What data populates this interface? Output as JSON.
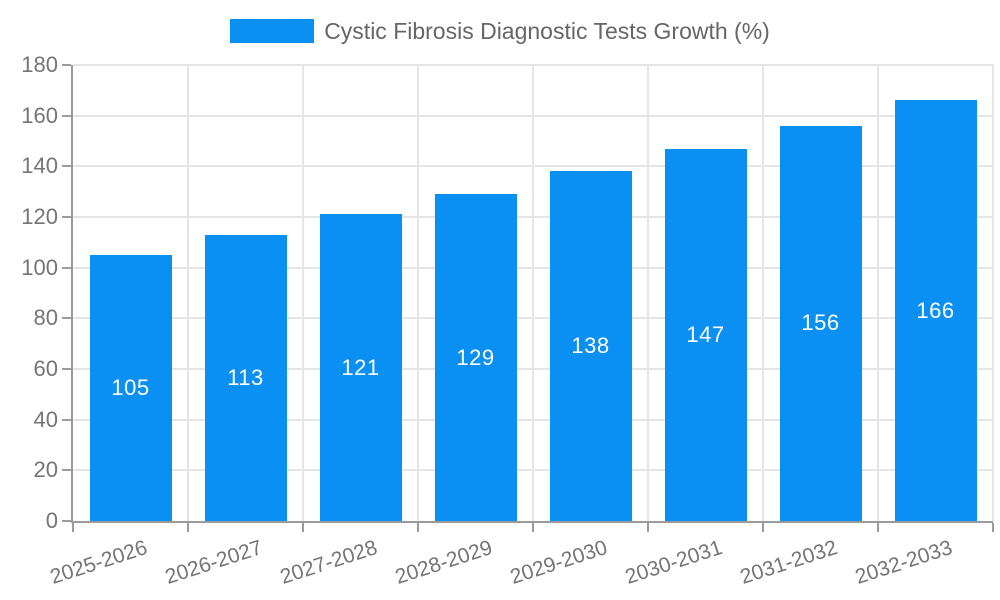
{
  "chart_data": {
    "type": "bar",
    "title": "Cystic Fibrosis Diagnostic Tests Growth (%)",
    "categories": [
      "2025-2026",
      "2026-2027",
      "2027-2028",
      "2028-2029",
      "2029-2030",
      "2030-2031",
      "2031-2032",
      "2032-2033"
    ],
    "values": [
      105,
      113,
      121,
      129,
      138,
      147,
      156,
      166
    ],
    "xlabel": "",
    "ylabel": "",
    "ylim": [
      0,
      180
    ],
    "ytick_step": 20,
    "grid": true,
    "legend_position": "top-center",
    "bar_labels_inside": true
  },
  "legend": {
    "label": "Cystic Fibrosis Diagnostic Tests Growth (%)"
  },
  "colors": {
    "bar": "#0a8ff2",
    "bar_label_text": "#ffffff",
    "grid": "#e5e5e5",
    "axis": "#9b9b9b",
    "tick_text": "#757575",
    "legend_text": "#666666",
    "background": "#ffffff"
  }
}
